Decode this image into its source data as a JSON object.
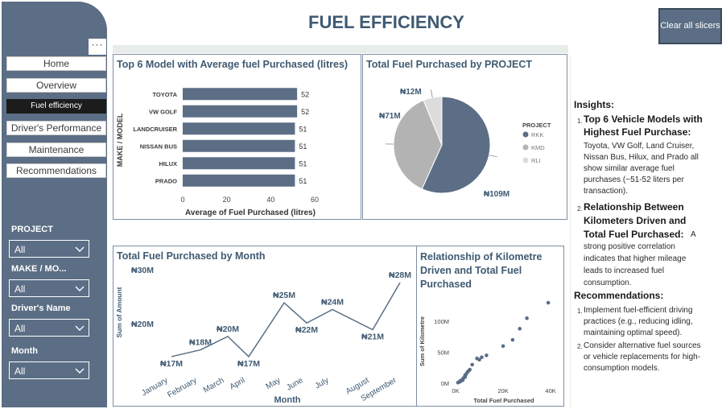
{
  "header": {
    "title": "FUEL EFFICIENCY",
    "clear_label": "Clear all slicers"
  },
  "sidebar": {
    "more": "···",
    "nav": [
      {
        "label": "Home"
      },
      {
        "label": "Overview"
      },
      {
        "label": "Fuel efficiency"
      },
      {
        "label": "Driver's Performance"
      },
      {
        "label": "Maintenance"
      },
      {
        "label": "Recommendations"
      }
    ],
    "active_index": 2,
    "slicers": [
      {
        "label": "PROJECT",
        "value": "All"
      },
      {
        "label": "MAKE / MO...",
        "value": "All"
      },
      {
        "label": "Driver's Name",
        "value": "All"
      },
      {
        "label": "Month",
        "value": "All"
      }
    ]
  },
  "panels": {
    "model": {
      "title": "Top 6 Model with Average fuel Purchased (litres)"
    },
    "project": {
      "title": "Total Fuel Purchased by PROJECT"
    },
    "month": {
      "title": "Total Fuel Purchased by Month"
    },
    "km": {
      "title": "Relationship of Kilometre Driven and Total Fuel Purchased"
    }
  },
  "chart_data": [
    {
      "type": "bar",
      "orientation": "horizontal",
      "title": "Top 6 Model with Average fuel Purchased (litres)",
      "categories": [
        "TOYOTA",
        "VW GOLF",
        "LANDCRUISER",
        "NISSAN BUS",
        "HILUX",
        "PRADO"
      ],
      "values": [
        52,
        52,
        51,
        51,
        51,
        51
      ],
      "xlabel": "Average of Fuel Purchased (litres)",
      "ylabel": "MAKE / MODEL",
      "xlim": [
        0,
        60
      ],
      "xticks": [
        "0",
        "20",
        "40",
        "60"
      ],
      "color": "#5b6e85"
    },
    {
      "type": "pie",
      "title": "Total Fuel Purchased by PROJECT",
      "legend_title": "PROJECT",
      "legend_position": "right",
      "slices": [
        {
          "name": "RKK",
          "value": 109,
          "label": "₦109M",
          "color": "#5b6e85"
        },
        {
          "name": "KMD",
          "value": 71,
          "label": "₦71M",
          "color": "#b3b3b3"
        },
        {
          "name": "RLI",
          "value": 12,
          "label": "₦12M",
          "color": "#dcdcdc"
        }
      ]
    },
    {
      "type": "line",
      "title": "Total Fuel Purchased by Month",
      "categories": [
        "January",
        "February",
        "March",
        "April",
        "May",
        "June",
        "July",
        "August",
        "September"
      ],
      "values": [
        17,
        18,
        20,
        17,
        25,
        22,
        24,
        21,
        28
      ],
      "labels": [
        "₦17M",
        "₦18M",
        "₦20M",
        "₦17M",
        "₦25M",
        "₦22M",
        "₦24M",
        "₦21M",
        "₦28M"
      ],
      "axis_labels": [
        "₦30M",
        "₦20M"
      ],
      "xlabel": "Month",
      "ylabel": "Sum of Amount",
      "ylim": [
        14,
        31
      ],
      "color": "#5b6e85"
    },
    {
      "type": "scatter",
      "title": "Relationship of Kilometre Driven and Total Fuel Purchased",
      "xlabel": "Total Fuel Purchased",
      "ylabel": "Sum of Kilometre",
      "xticks": [
        "0K",
        "20K",
        "40K"
      ],
      "yticks": [
        "100M",
        "50M",
        "0M"
      ],
      "xlim": [
        0,
        42
      ],
      "ylim": [
        0,
        130
      ],
      "points": [
        [
          1,
          1
        ],
        [
          1.5,
          2
        ],
        [
          2,
          3
        ],
        [
          2.5,
          4
        ],
        [
          3,
          5
        ],
        [
          3,
          7
        ],
        [
          3.5,
          9
        ],
        [
          4,
          10
        ],
        [
          4,
          13
        ],
        [
          4.5,
          15
        ],
        [
          5,
          18
        ],
        [
          5.5,
          20
        ],
        [
          6,
          22
        ],
        [
          3,
          6
        ],
        [
          2,
          4
        ],
        [
          7,
          30
        ],
        [
          9,
          40
        ],
        [
          11,
          42
        ],
        [
          13,
          45
        ],
        [
          10,
          38
        ],
        [
          20,
          60
        ],
        [
          24,
          70
        ],
        [
          27,
          88
        ],
        [
          30,
          105
        ],
        [
          39,
          130
        ]
      ],
      "color": "#5b6e85"
    }
  ],
  "insights": {
    "heading": "Insights:",
    "items": [
      {
        "num": "1.",
        "title": "Top 6 Vehicle Models with Highest Fuel Purchase:",
        "lines": [
          "Toyota, VW Golf, Land Cruiser,",
          "Nissan Bus, Hilux, and Prado all",
          "show similar average fuel",
          "purchases (~51-52 liters per",
          "transaction)."
        ]
      },
      {
        "num": "2.",
        "title_lines": [
          "Relationship Between",
          "Kilometers Driven and",
          "Total Fuel Purchased:"
        ],
        "inline": "A",
        "lines": [
          "strong positive correlation",
          "indicates that higher mileage",
          "leads to increased fuel",
          "consumption."
        ]
      }
    ],
    "rec_heading": "Recommendations:",
    "recs": [
      {
        "num": "1.",
        "lines": [
          "Implement fuel-efficient driving",
          "practices (e.g., reducing idling,",
          "maintaining optimal speed)."
        ]
      },
      {
        "num": "2.",
        "lines": [
          "Consider alternative fuel sources",
          "or vehicle replacements for high-",
          "consumption models."
        ]
      }
    ]
  }
}
